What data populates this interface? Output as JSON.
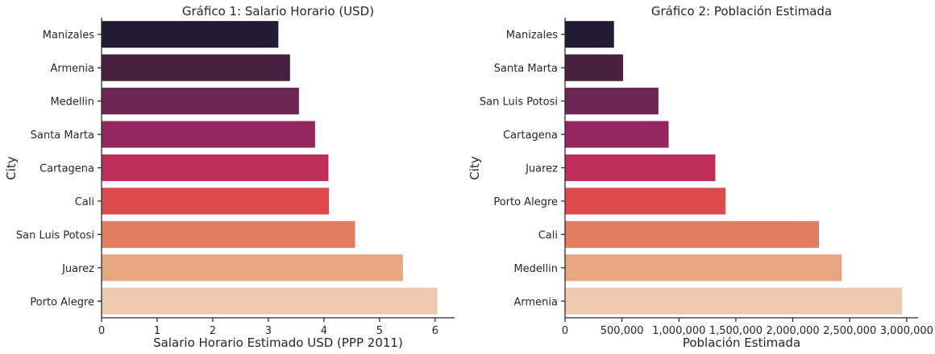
{
  "palette": [
    "#231a33",
    "#46223f",
    "#6c2651",
    "#94275f",
    "#be2f59",
    "#dd4b4e",
    "#e27c61",
    "#e9a481",
    "#efc8ad"
  ],
  "chart_data": [
    {
      "type": "bar",
      "orientation": "horizontal",
      "title": "Gráfico 1: Salario Horario (USD)",
      "xlabel": "Salario Horario Estimado USD (PPP 2011)",
      "ylabel": "City",
      "categories": [
        "Manizales",
        "Armenia",
        "Medellin",
        "Santa Marta",
        "Cartagena",
        "Cali",
        "San Luis Potosi",
        "Juarez",
        "Porto Alegre"
      ],
      "values": [
        3.18,
        3.39,
        3.55,
        3.84,
        4.08,
        4.09,
        4.56,
        5.42,
        6.04
      ],
      "xlim": [
        0,
        6.35
      ],
      "xticks": [
        0,
        1,
        2,
        3,
        4,
        5,
        6
      ],
      "xtick_labels": [
        "0",
        "1",
        "2",
        "3",
        "4",
        "5",
        "6"
      ]
    },
    {
      "type": "bar",
      "orientation": "horizontal",
      "title": "Gráfico 2: Población Estimada",
      "xlabel": "Población Estimada",
      "ylabel": "City",
      "categories": [
        "Manizales",
        "Santa Marta",
        "San Luis Potosi",
        "Cartagena",
        "Juarez",
        "Porto Alegre",
        "Cali",
        "Medellin",
        "Armenia"
      ],
      "values": [
        430000,
        510000,
        820000,
        910000,
        1320000,
        1410000,
        2230000,
        2430000,
        2960000
      ],
      "xlim": [
        0,
        3100000
      ],
      "xticks": [
        0,
        500000,
        1000000,
        1500000,
        2000000,
        2500000,
        3000000
      ],
      "xtick_labels": [
        "0",
        "500,000",
        "1,000,000",
        "1,500,000",
        "2,000,000",
        "2,500,000",
        "3,000,000"
      ]
    }
  ]
}
